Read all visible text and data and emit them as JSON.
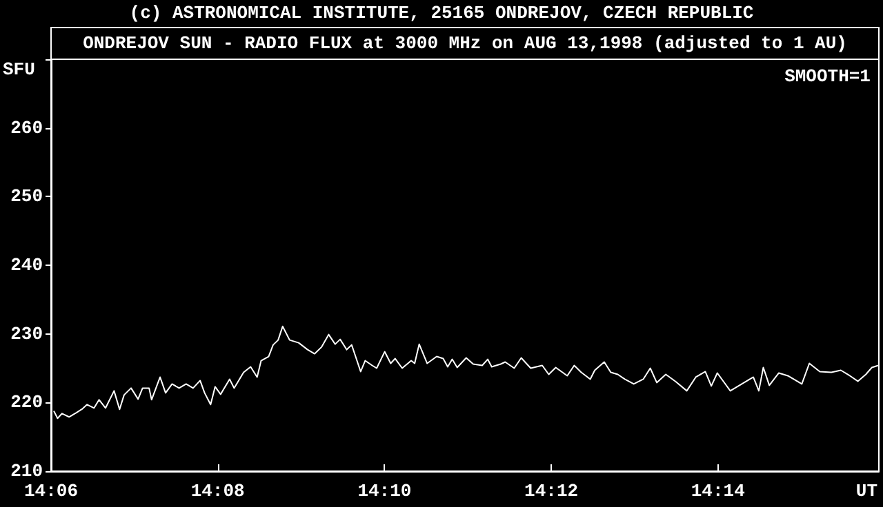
{
  "chart_data": {
    "type": "line",
    "title": "ONDREJOV SUN - RADIO FLUX at 3000 MHz on AUG 13,1998 (adjusted to 1 AU)",
    "subtitle": "(c) ASTRONOMICAL INSTITUTE, 25165 ONDREJOV, CZECH REPUBLIC",
    "xlabel": "UT",
    "ylabel": "SFU",
    "annotations": [
      "SMOOTH=1"
    ],
    "xlim": [
      14.1,
      14.2655
    ],
    "ylim": [
      210,
      270
    ],
    "xticks": [
      {
        "value": 14.1,
        "label": "14:06"
      },
      {
        "value": 14.13333,
        "label": "14:08"
      },
      {
        "value": 14.16667,
        "label": "14:10"
      },
      {
        "value": 14.2,
        "label": "14:12"
      },
      {
        "value": 14.23333,
        "label": "14:14"
      }
    ],
    "yticks": [
      210,
      220,
      230,
      240,
      250,
      260,
      {
        "value": 270,
        "label": null
      }
    ],
    "marker": "none",
    "line_style": "solid",
    "series": [
      {
        "color": "#ffffff",
        "x": [
          14.1006,
          14.1013,
          14.1022,
          14.1036,
          14.105,
          14.1063,
          14.1072,
          14.1086,
          14.1096,
          14.1109,
          14.1126,
          14.1137,
          14.1146,
          14.116,
          14.1174,
          14.1183,
          14.1196,
          14.1201,
          14.1218,
          14.1229,
          14.1242,
          14.1256,
          14.127,
          14.1284,
          14.1298,
          14.1307,
          14.1319,
          14.1328,
          14.1339,
          14.1357,
          14.1366,
          14.1385,
          14.1399,
          14.1412,
          14.142,
          14.1435,
          14.1444,
          14.1454,
          14.1463,
          14.1477,
          14.1495,
          14.1513,
          14.1527,
          14.1541,
          14.1555,
          14.1568,
          14.1578,
          14.1591,
          14.1601,
          14.1619,
          14.1628,
          14.1642,
          14.1651,
          14.1667,
          14.1679,
          14.1688,
          14.1702,
          14.172,
          14.1727,
          14.1736,
          14.1752,
          14.1771,
          14.1784,
          14.1793,
          14.1802,
          14.1812,
          14.183,
          14.1844,
          14.1862,
          14.1873,
          14.1881,
          14.1899,
          14.1908,
          14.1926,
          14.194,
          14.1959,
          14.1982,
          14.1995,
          14.2009,
          14.2032,
          14.2046,
          14.206,
          14.2078,
          14.2087,
          14.2106,
          14.2119,
          14.2133,
          14.2147,
          14.2165,
          14.2184,
          14.2198,
          14.2211,
          14.2229,
          14.2248,
          14.2271,
          14.2289,
          14.2308,
          14.232,
          14.2332,
          14.2358,
          14.2381,
          14.2404,
          14.2415,
          14.2424,
          14.2436,
          14.2455,
          14.2473,
          14.2501,
          14.2516,
          14.2537,
          14.256,
          14.2579,
          14.2597,
          14.2613,
          14.2629,
          14.2641,
          14.2654
        ],
        "values": [
          218.7,
          217.7,
          218.4,
          217.9,
          218.5,
          219.1,
          219.7,
          219.2,
          220.4,
          219.2,
          221.7,
          219.0,
          221.1,
          222.1,
          220.5,
          222.1,
          222.1,
          220.4,
          223.7,
          221.4,
          222.7,
          222.1,
          222.7,
          222.1,
          223.2,
          221.4,
          219.7,
          222.3,
          221.2,
          223.4,
          222.1,
          224.4,
          225.2,
          223.7,
          226.1,
          226.7,
          228.4,
          229.1,
          231.1,
          229.1,
          228.7,
          227.7,
          227.1,
          228.1,
          229.9,
          228.5,
          229.2,
          227.7,
          228.4,
          224.5,
          226.1,
          225.4,
          225.0,
          227.4,
          225.7,
          226.4,
          225.0,
          226.1,
          225.7,
          228.5,
          225.7,
          226.7,
          226.4,
          225.2,
          226.3,
          225.1,
          226.5,
          225.6,
          225.4,
          226.3,
          225.2,
          225.6,
          225.9,
          225.0,
          226.5,
          225.0,
          225.4,
          224.1,
          225.1,
          223.9,
          225.4,
          224.4,
          223.4,
          224.7,
          225.9,
          224.4,
          224.1,
          223.4,
          222.7,
          223.4,
          225.0,
          222.9,
          224.1,
          223.1,
          221.7,
          223.7,
          224.5,
          222.4,
          224.3,
          221.7,
          222.7,
          223.7,
          221.7,
          225.1,
          222.5,
          224.3,
          223.9,
          222.7,
          225.7,
          224.5,
          224.4,
          224.7,
          223.9,
          223.1,
          224.1,
          225.1,
          225.4
        ]
      }
    ]
  }
}
